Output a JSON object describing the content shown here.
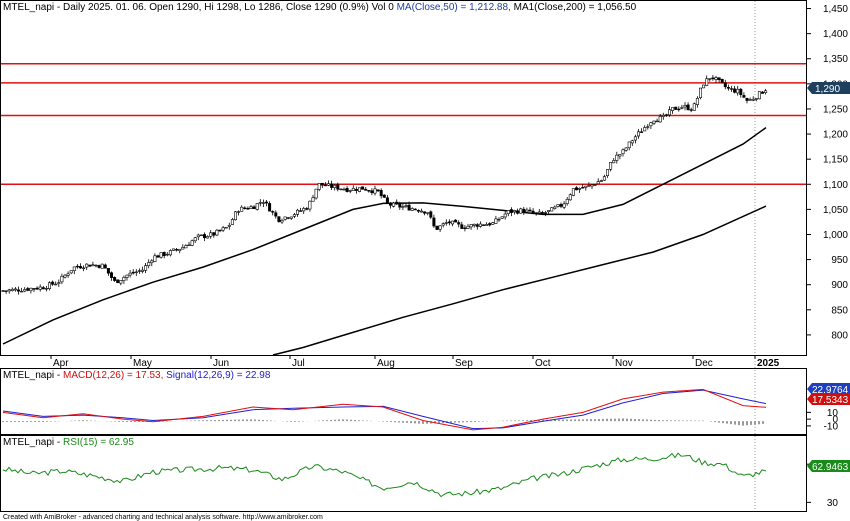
{
  "main_header": {
    "ticker_info": "MTEL_napi - Daily 2025. 01. 06. Open 1290, Hi 1298, Lo 1286, Close 1290 (0.9%) Vol 0",
    "ma_label": "MA(Close,50) = 1,212.88,",
    "ma1_label": "MA1(Close,200) = 1,056.50"
  },
  "macd_header": {
    "prefix": "MTEL_napi - ",
    "macd_label": "MACD(12,26) = 17.53,",
    "signal_label": "Signal(12,26,9) = 22.98"
  },
  "rsi_header": {
    "prefix": "MTEL_napi - ",
    "rsi_label": "RSI(15) = 62.95"
  },
  "footer": "Created with AmiBroker - advanced charting and technical analysis software. http://www.amibroker.com",
  "badges": {
    "price": "1,290",
    "macd_signal": "22.9764",
    "macd": "17.5343",
    "rsi": "62.9463"
  },
  "colors": {
    "candle": "#000000",
    "sr_line": "#e01010",
    "ma": "#000000",
    "macd": "#e01010",
    "signal": "#2020d0",
    "rsi": "#1a8a1a",
    "badge_price": "#1f3f5f",
    "badge_signal": "#1f3fbf",
    "badge_macd": "#d01010",
    "badge_rsi": "#1a8a1a"
  },
  "chart_data": [
    {
      "type": "candlestick",
      "title": "MTEL_napi - Daily",
      "x_labels": [
        "Apr",
        "May",
        "Jun",
        "Jul",
        "Aug",
        "Sep",
        "Oct",
        "Nov",
        "Dec",
        "2025"
      ],
      "y_ticks": [
        800,
        850,
        900,
        950,
        1000,
        1050,
        1100,
        1150,
        1200,
        1250,
        1300,
        1350,
        1400,
        1450
      ],
      "y_tick_labels": [
        "800",
        "850",
        "900",
        "950",
        "1,000",
        "1,050",
        "1,100",
        "1,150",
        "1,200",
        "1,250",
        "1,300",
        "1,350",
        "1,400",
        "1,450"
      ],
      "ylim": [
        760,
        1465
      ],
      "support_resistance": [
        1340,
        1302,
        1237,
        1100
      ],
      "close_approx": [
        {
          "x": 0,
          "y": 888
        },
        {
          "x": 20,
          "y": 891
        },
        {
          "x": 40,
          "y": 895
        },
        {
          "x": 55,
          "y": 905
        },
        {
          "x": 70,
          "y": 934
        },
        {
          "x": 85,
          "y": 940
        },
        {
          "x": 100,
          "y": 938
        },
        {
          "x": 112,
          "y": 905
        },
        {
          "x": 125,
          "y": 920
        },
        {
          "x": 140,
          "y": 930
        },
        {
          "x": 150,
          "y": 955
        },
        {
          "x": 165,
          "y": 963
        },
        {
          "x": 180,
          "y": 975
        },
        {
          "x": 195,
          "y": 995
        },
        {
          "x": 210,
          "y": 1000
        },
        {
          "x": 225,
          "y": 1015
        },
        {
          "x": 235,
          "y": 1050
        },
        {
          "x": 250,
          "y": 1055
        },
        {
          "x": 260,
          "y": 1068
        },
        {
          "x": 275,
          "y": 1030
        },
        {
          "x": 290,
          "y": 1040
        },
        {
          "x": 305,
          "y": 1055
        },
        {
          "x": 315,
          "y": 1100
        },
        {
          "x": 330,
          "y": 1095
        },
        {
          "x": 345,
          "y": 1090
        },
        {
          "x": 360,
          "y": 1092
        },
        {
          "x": 375,
          "y": 1085
        },
        {
          "x": 385,
          "y": 1060
        },
        {
          "x": 400,
          "y": 1055
        },
        {
          "x": 415,
          "y": 1050
        },
        {
          "x": 425,
          "y": 1045
        },
        {
          "x": 432,
          "y": 1010
        },
        {
          "x": 445,
          "y": 1025
        },
        {
          "x": 460,
          "y": 1015
        },
        {
          "x": 475,
          "y": 1020
        },
        {
          "x": 490,
          "y": 1022
        },
        {
          "x": 505,
          "y": 1045
        },
        {
          "x": 520,
          "y": 1048
        },
        {
          "x": 535,
          "y": 1040
        },
        {
          "x": 545,
          "y": 1045
        },
        {
          "x": 560,
          "y": 1060
        },
        {
          "x": 570,
          "y": 1090
        },
        {
          "x": 585,
          "y": 1095
        },
        {
          "x": 600,
          "y": 1110
        },
        {
          "x": 610,
          "y": 1150
        },
        {
          "x": 620,
          "y": 1165
        },
        {
          "x": 630,
          "y": 1190
        },
        {
          "x": 640,
          "y": 1210
        },
        {
          "x": 650,
          "y": 1230
        },
        {
          "x": 660,
          "y": 1232
        },
        {
          "x": 670,
          "y": 1250
        },
        {
          "x": 680,
          "y": 1255
        },
        {
          "x": 690,
          "y": 1250
        },
        {
          "x": 700,
          "y": 1300
        },
        {
          "x": 708,
          "y": 1315
        },
        {
          "x": 715,
          "y": 1305
        },
        {
          "x": 725,
          "y": 1290
        },
        {
          "x": 735,
          "y": 1285
        },
        {
          "x": 745,
          "y": 1265
        },
        {
          "x": 755,
          "y": 1278
        },
        {
          "x": 763,
          "y": 1290
        }
      ],
      "ma50_approx": [
        {
          "x": 0,
          "y": 782
        },
        {
          "x": 50,
          "y": 830
        },
        {
          "x": 100,
          "y": 870
        },
        {
          "x": 150,
          "y": 905
        },
        {
          "x": 200,
          "y": 935
        },
        {
          "x": 250,
          "y": 970
        },
        {
          "x": 300,
          "y": 1010
        },
        {
          "x": 350,
          "y": 1050
        },
        {
          "x": 380,
          "y": 1062
        },
        {
          "x": 420,
          "y": 1063
        },
        {
          "x": 460,
          "y": 1056
        },
        {
          "x": 500,
          "y": 1048
        },
        {
          "x": 540,
          "y": 1040
        },
        {
          "x": 580,
          "y": 1040
        },
        {
          "x": 620,
          "y": 1060
        },
        {
          "x": 660,
          "y": 1100
        },
        {
          "x": 700,
          "y": 1140
        },
        {
          "x": 740,
          "y": 1180
        },
        {
          "x": 763,
          "y": 1212.88
        }
      ],
      "ma200_approx": [
        {
          "x": 270,
          "y": 760
        },
        {
          "x": 300,
          "y": 775
        },
        {
          "x": 350,
          "y": 805
        },
        {
          "x": 400,
          "y": 835
        },
        {
          "x": 450,
          "y": 862
        },
        {
          "x": 500,
          "y": 890
        },
        {
          "x": 550,
          "y": 915
        },
        {
          "x": 600,
          "y": 940
        },
        {
          "x": 650,
          "y": 965
        },
        {
          "x": 700,
          "y": 1000
        },
        {
          "x": 763,
          "y": 1056.5
        }
      ]
    },
    {
      "type": "line",
      "title": "MACD(12,26)",
      "y_ticks": [
        -10,
        0,
        10
      ],
      "ylim": [
        -22,
        52
      ],
      "series": [
        {
          "name": "MACD(12,26)",
          "values_approx": [
            {
              "x": 0,
              "y": 10
            },
            {
              "x": 40,
              "y": 2
            },
            {
              "x": 80,
              "y": 8
            },
            {
              "x": 120,
              "y": 0
            },
            {
              "x": 150,
              "y": -4
            },
            {
              "x": 200,
              "y": 4
            },
            {
              "x": 250,
              "y": 18
            },
            {
              "x": 290,
              "y": 14
            },
            {
              "x": 340,
              "y": 22
            },
            {
              "x": 380,
              "y": 18
            },
            {
              "x": 420,
              "y": -2
            },
            {
              "x": 470,
              "y": -16
            },
            {
              "x": 500,
              "y": -12
            },
            {
              "x": 540,
              "y": 0
            },
            {
              "x": 580,
              "y": 10
            },
            {
              "x": 620,
              "y": 30
            },
            {
              "x": 660,
              "y": 40
            },
            {
              "x": 700,
              "y": 44
            },
            {
              "x": 740,
              "y": 20
            },
            {
              "x": 763,
              "y": 17.53
            }
          ]
        },
        {
          "name": "Signal(12,26,9)",
          "values_approx": [
            {
              "x": 0,
              "y": 12
            },
            {
              "x": 40,
              "y": 4
            },
            {
              "x": 80,
              "y": 6
            },
            {
              "x": 120,
              "y": 2
            },
            {
              "x": 150,
              "y": -2
            },
            {
              "x": 200,
              "y": 2
            },
            {
              "x": 250,
              "y": 14
            },
            {
              "x": 290,
              "y": 16
            },
            {
              "x": 340,
              "y": 18
            },
            {
              "x": 380,
              "y": 19
            },
            {
              "x": 420,
              "y": 4
            },
            {
              "x": 470,
              "y": -14
            },
            {
              "x": 500,
              "y": -13
            },
            {
              "x": 540,
              "y": -3
            },
            {
              "x": 580,
              "y": 6
            },
            {
              "x": 620,
              "y": 24
            },
            {
              "x": 660,
              "y": 38
            },
            {
              "x": 700,
              "y": 43
            },
            {
              "x": 740,
              "y": 30
            },
            {
              "x": 763,
              "y": 22.98
            }
          ]
        }
      ]
    },
    {
      "type": "line",
      "title": "RSI(15)",
      "y_ticks": [
        30,
        70
      ],
      "ylim": [
        22,
        88
      ],
      "series": [
        {
          "name": "RSI(15)",
          "values_approx": [
            {
              "x": 0,
              "y": 65
            },
            {
              "x": 30,
              "y": 60
            },
            {
              "x": 60,
              "y": 63
            },
            {
              "x": 90,
              "y": 58
            },
            {
              "x": 120,
              "y": 52
            },
            {
              "x": 150,
              "y": 62
            },
            {
              "x": 180,
              "y": 64
            },
            {
              "x": 220,
              "y": 66
            },
            {
              "x": 250,
              "y": 64
            },
            {
              "x": 280,
              "y": 54
            },
            {
              "x": 310,
              "y": 68
            },
            {
              "x": 340,
              "y": 62
            },
            {
              "x": 380,
              "y": 45
            },
            {
              "x": 410,
              "y": 52
            },
            {
              "x": 440,
              "y": 38
            },
            {
              "x": 470,
              "y": 40
            },
            {
              "x": 500,
              "y": 45
            },
            {
              "x": 530,
              "y": 55
            },
            {
              "x": 560,
              "y": 60
            },
            {
              "x": 590,
              "y": 68
            },
            {
              "x": 620,
              "y": 75
            },
            {
              "x": 650,
              "y": 76
            },
            {
              "x": 680,
              "y": 80
            },
            {
              "x": 700,
              "y": 72
            },
            {
              "x": 720,
              "y": 70
            },
            {
              "x": 740,
              "y": 57
            },
            {
              "x": 763,
              "y": 62.95
            }
          ]
        }
      ]
    }
  ]
}
